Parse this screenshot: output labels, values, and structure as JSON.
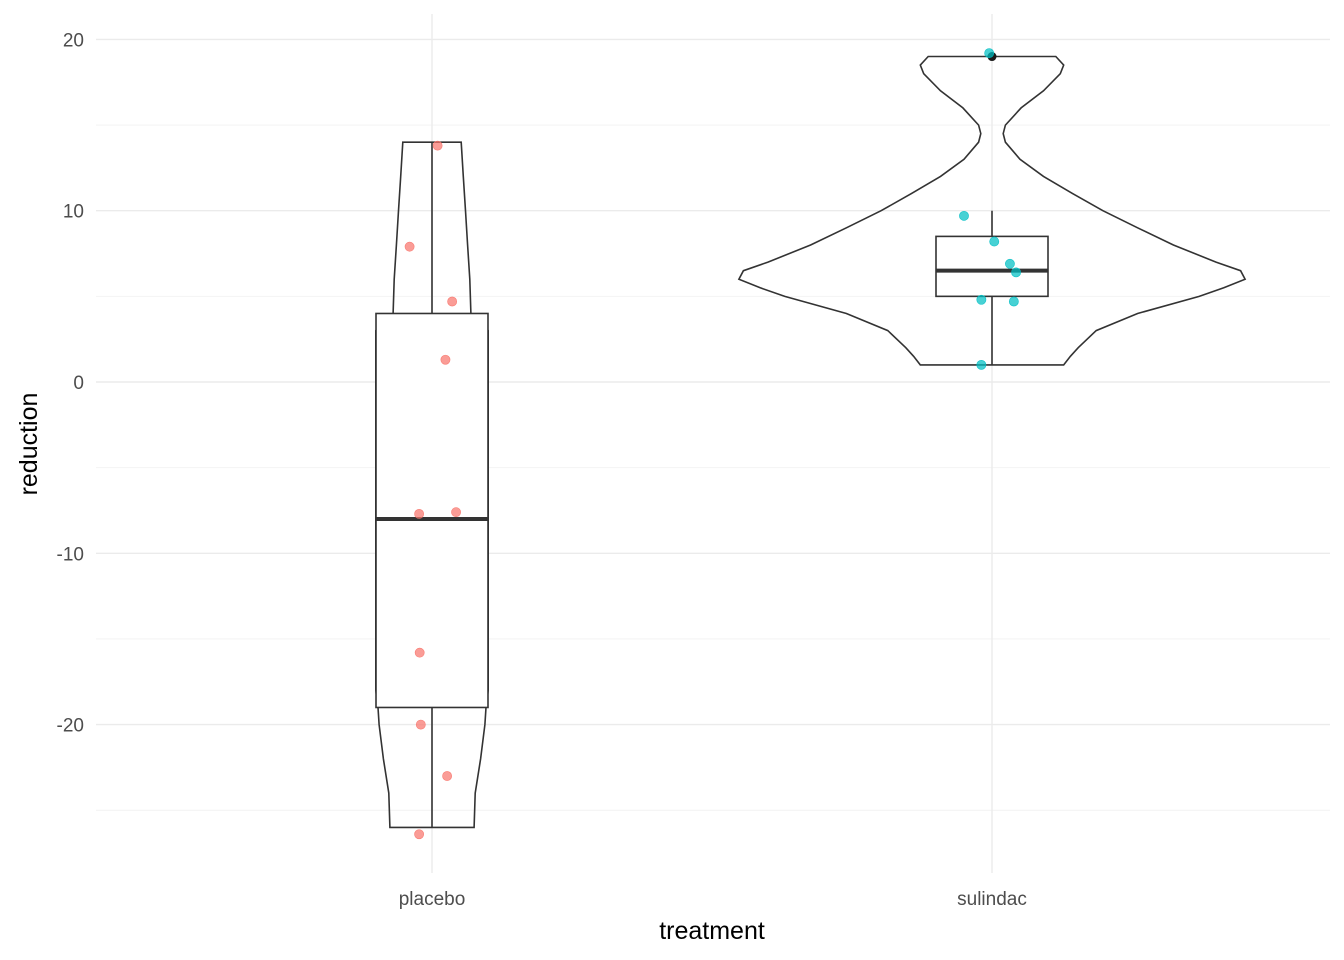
{
  "chart_data": {
    "type": "violin",
    "title": "",
    "xlabel": "treatment",
    "ylabel": "reduction",
    "ylim": [
      -29,
      21.5
    ],
    "y_ticks": [
      20,
      10,
      0,
      -10,
      -20
    ],
    "y_tick_labels": [
      "20",
      "10",
      "0",
      "-10",
      "-20"
    ],
    "y_minor_ticks": [
      15,
      5,
      -5,
      -15,
      -25
    ],
    "grid": true,
    "legend": "none",
    "categories": [
      "placebo",
      "sulindac"
    ],
    "series": [
      {
        "category": "placebo",
        "color": "#F8766D",
        "points": [
          {
            "jitter": 0.1,
            "value": 13.8
          },
          {
            "jitter": -0.4,
            "value": 7.9
          },
          {
            "jitter": 0.36,
            "value": 4.7
          },
          {
            "jitter": 0.24,
            "value": 1.3
          },
          {
            "jitter": -0.23,
            "value": -7.7
          },
          {
            "jitter": 0.43,
            "value": -7.6
          },
          {
            "jitter": -0.22,
            "value": -15.8
          },
          {
            "jitter": -0.2,
            "value": -20
          },
          {
            "jitter": 0.27,
            "value": -23
          },
          {
            "jitter": -0.23,
            "value": -26.4
          }
        ],
        "box": {
          "min": -26,
          "q1": -19,
          "median": -8,
          "q3": 4,
          "max": 14
        },
        "violin_min": -26,
        "violin_max": 14,
        "violin_density": [
          [
            -26,
            0.39
          ],
          [
            -24,
            0.4
          ],
          [
            -22,
            0.45
          ],
          [
            -20,
            0.49
          ],
          [
            -19,
            0.5
          ],
          [
            -18,
            0.52
          ],
          [
            -12,
            0.52
          ],
          [
            -8,
            0.52
          ],
          [
            -2,
            0.52
          ],
          [
            3,
            0.52
          ],
          [
            4,
            0.36
          ],
          [
            6,
            0.35
          ],
          [
            8,
            0.33
          ],
          [
            10,
            0.31
          ],
          [
            12,
            0.29
          ],
          [
            14,
            0.27
          ]
        ]
      },
      {
        "category": "sulindac",
        "color": "#00BFC4",
        "points": [
          {
            "jitter": -0.05,
            "value": 19.2
          },
          {
            "jitter": -0.5,
            "value": 9.7
          },
          {
            "jitter": 0.04,
            "value": 8.2
          },
          {
            "jitter": 0.32,
            "value": 6.9
          },
          {
            "jitter": 0.43,
            "value": 6.4
          },
          {
            "jitter": -0.19,
            "value": 4.8
          },
          {
            "jitter": 0.39,
            "value": 4.7
          },
          {
            "jitter": -0.19,
            "value": 1.0
          }
        ],
        "outliers": [
          19
        ],
        "box": {
          "min": 1,
          "q1": 5,
          "median": 6.5,
          "q3": 8.5,
          "max": 10
        },
        "violin_min": 1,
        "violin_max": 19,
        "violin_density": [
          [
            1,
            0.64
          ],
          [
            1.5,
            0.7
          ],
          [
            2,
            0.77
          ],
          [
            3,
            0.93
          ],
          [
            4,
            1.3
          ],
          [
            5,
            1.85
          ],
          [
            5.5,
            2.07
          ],
          [
            6,
            2.26
          ],
          [
            6.5,
            2.22
          ],
          [
            7,
            2.0
          ],
          [
            8,
            1.62
          ],
          [
            9,
            1.3
          ],
          [
            10,
            0.99
          ],
          [
            11,
            0.72
          ],
          [
            12,
            0.46
          ],
          [
            13,
            0.25
          ],
          [
            14,
            0.12
          ],
          [
            14.5,
            0.1
          ],
          [
            15,
            0.12
          ],
          [
            16,
            0.26
          ],
          [
            17,
            0.46
          ],
          [
            18,
            0.61
          ],
          [
            18.5,
            0.64
          ],
          [
            19,
            0.57
          ]
        ]
      }
    ]
  }
}
